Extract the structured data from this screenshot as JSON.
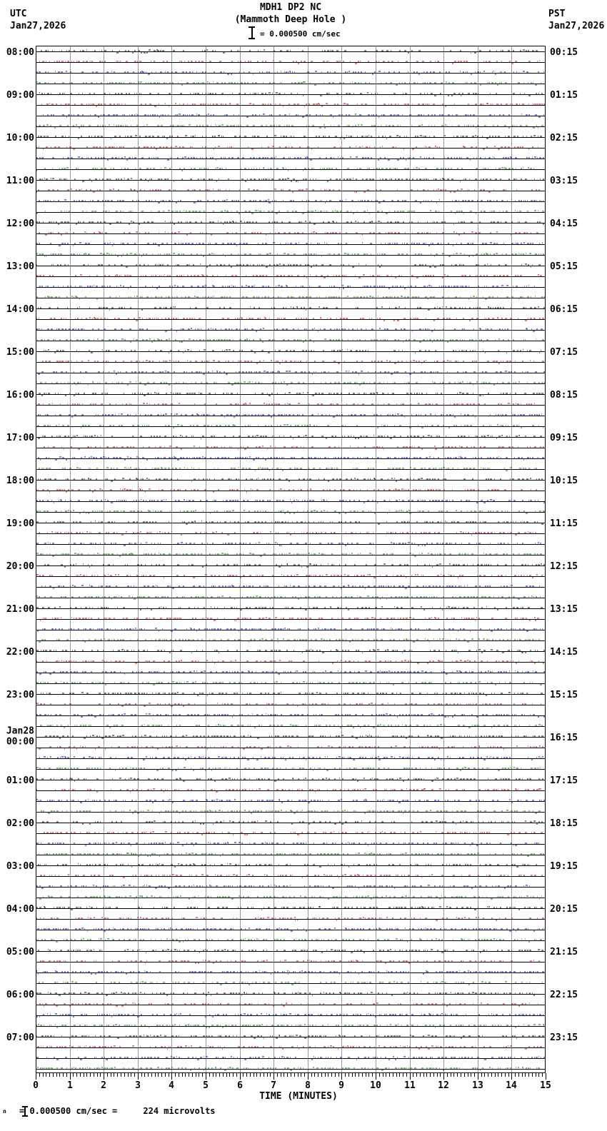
{
  "header": {
    "title_line1": "MDH1 DP2 NC",
    "title_line2": "(Mammoth Deep Hole )",
    "scale_text": "= 0.000500 cm/sec",
    "left_timezone": "UTC",
    "left_date": "Jan27,2026",
    "right_timezone": "PST",
    "right_date": "Jan27,2026"
  },
  "footer": {
    "marker_glyph": "n",
    "scale_text": "= 0.000500 cm/sec =     224 microvolts"
  },
  "chart_data": {
    "type": "line",
    "subtype": "helicorder-seismogram",
    "station": "MDH1 DP2 NC",
    "station_name": "(Mammoth Deep Hole )",
    "amplitude_scale": "= 0.000500 cm/sec",
    "xlabel": "TIME (MINUTES)",
    "x_range": [
      0,
      15
    ],
    "x_ticks": [
      "0",
      "1",
      "2",
      "3",
      "4",
      "5",
      "6",
      "7",
      "8",
      "9",
      "10",
      "11",
      "12",
      "13",
      "14",
      "15"
    ],
    "minor_ticks_per_minute": 10,
    "minutes_per_trace": 15,
    "traces_per_hour": 4,
    "num_traces": 96,
    "trace_color_cycle": [
      "#000000",
      "#cc0000",
      "#0000cc",
      "#007700"
    ],
    "grid_color": "#999999",
    "axis_color": "#000000",
    "utc_hour_labels": [
      "08:00",
      "09:00",
      "10:00",
      "11:00",
      "12:00",
      "13:00",
      "14:00",
      "15:00",
      "16:00",
      "17:00",
      "18:00",
      "19:00",
      "20:00",
      "21:00",
      "22:00",
      "23:00",
      "00:00",
      "01:00",
      "02:00",
      "03:00",
      "04:00",
      "05:00",
      "06:00",
      "07:00"
    ],
    "utc_day_change_label": "Jan28",
    "utc_day_change_hour_index": 16,
    "pst_hour_labels": [
      "00:15",
      "01:15",
      "02:15",
      "03:15",
      "04:15",
      "05:15",
      "06:15",
      "07:15",
      "08:15",
      "09:15",
      "10:15",
      "11:15",
      "12:15",
      "13:15",
      "14:15",
      "15:15",
      "16:15",
      "17:15",
      "18:15",
      "19:15",
      "20:15",
      "21:15",
      "22:15",
      "23:15"
    ],
    "trace_content": "near-flat background noise on every trace, no visible seismic events"
  }
}
